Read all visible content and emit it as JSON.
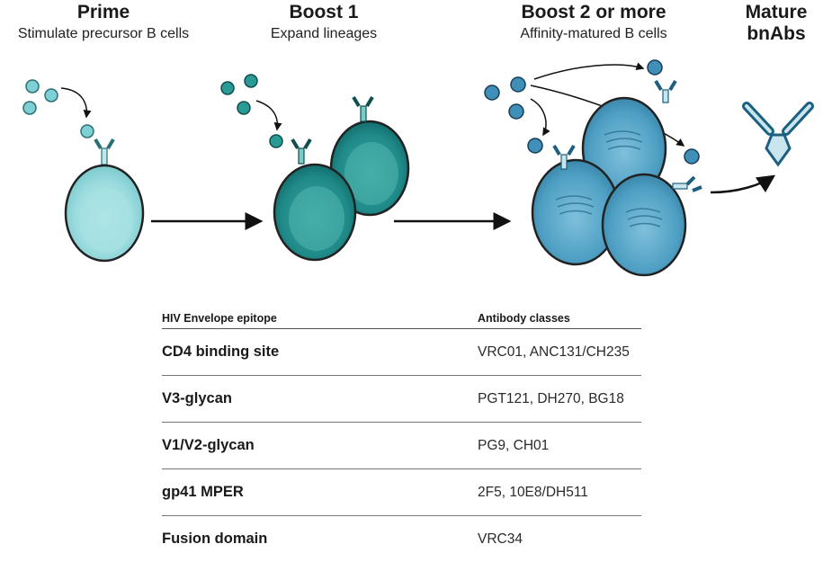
{
  "stages": [
    {
      "title": "Prime",
      "subtitle": "Stimulate precursor B cells"
    },
    {
      "title": "Boost 1",
      "subtitle": "Expand lineages"
    },
    {
      "title": "Boost 2 or more",
      "subtitle": "Affinity-matured B cells"
    },
    {
      "title": "Mature\nbnAbs",
      "subtitle": ""
    }
  ],
  "colors": {
    "prime_cell": "#8fd6da",
    "boost1_cell": "#1f8a88",
    "boost2_cell": "#4a9bbf",
    "antibody_dark": "#1d5f80",
    "antibody_light": "#c9e6ee"
  },
  "table": {
    "header": {
      "epitope": "HIV Envelope epitope",
      "classes": "Antibody classes"
    },
    "rows": [
      {
        "epitope": "CD4 binding site",
        "classes": "VRC01, ANC131/CH235"
      },
      {
        "epitope": "V3-glycan",
        "classes": "PGT121, DH270, BG18"
      },
      {
        "epitope": "V1/V2-glycan",
        "classes": "PG9, CH01"
      },
      {
        "epitope": "gp41 MPER",
        "classes": "2F5, 10E8/DH511"
      },
      {
        "epitope": "Fusion domain",
        "classes": "VRC34"
      }
    ]
  }
}
